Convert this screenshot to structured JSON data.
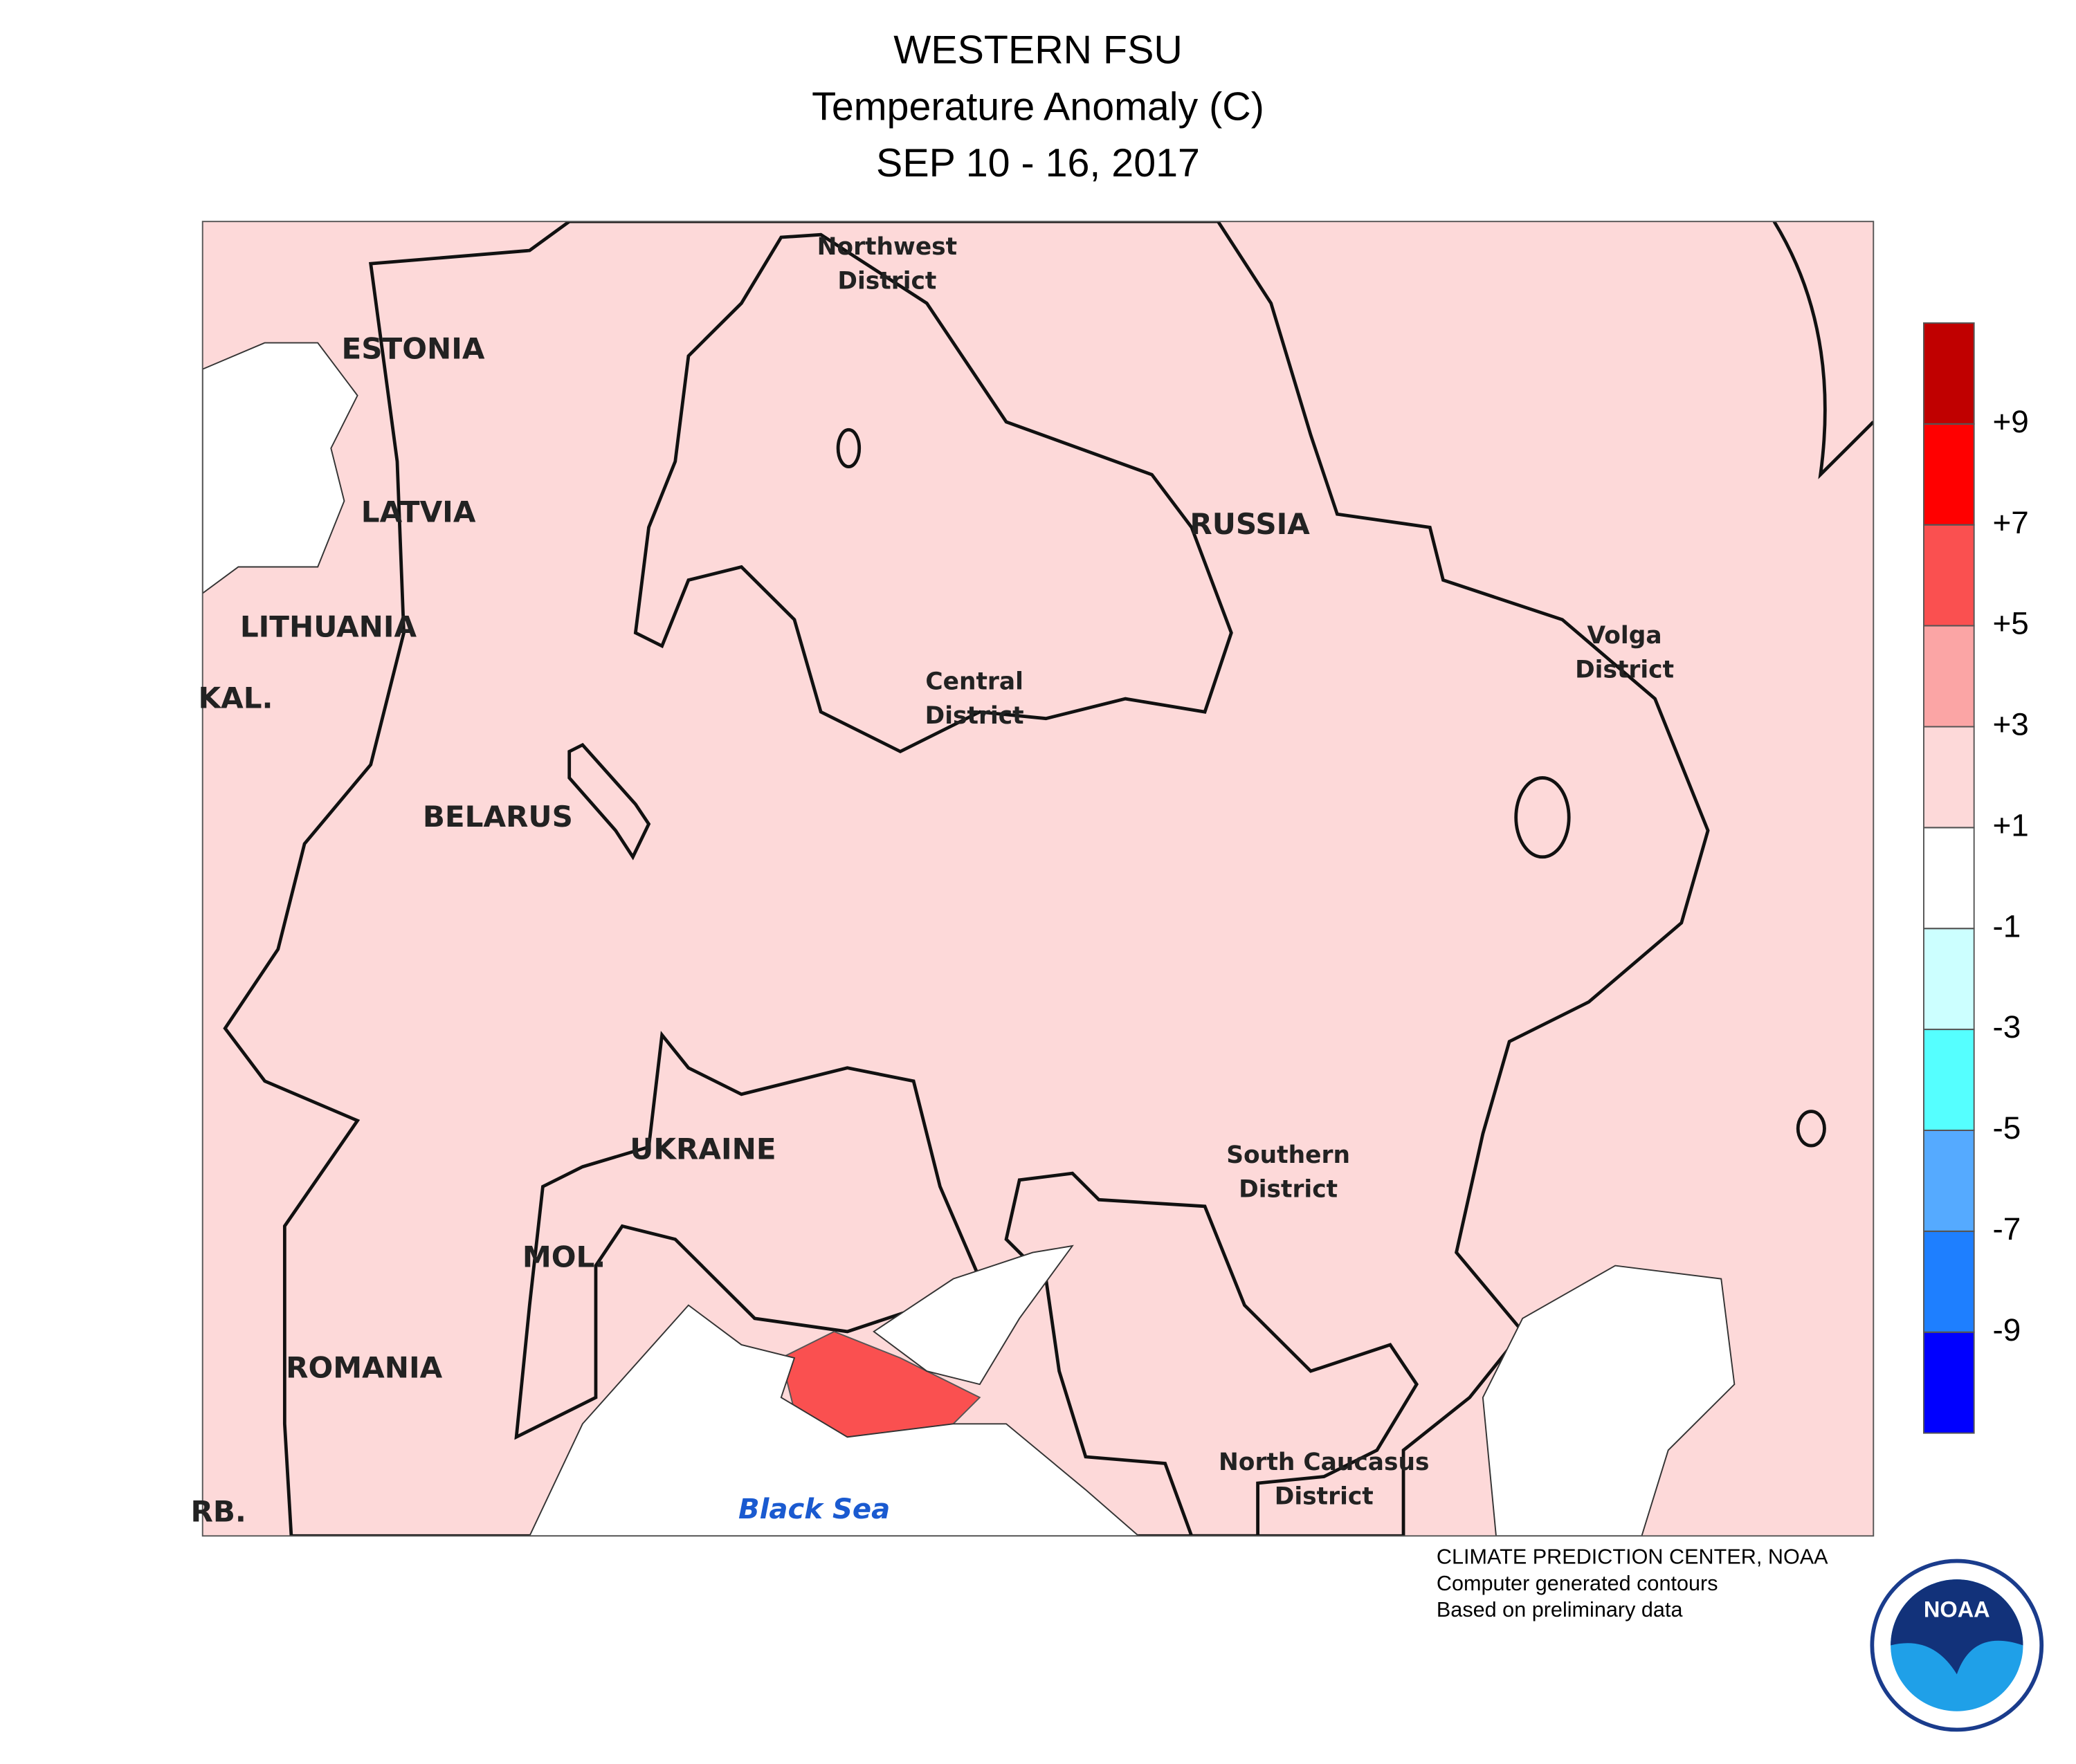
{
  "header": {
    "title": "WESTERN FSU",
    "subtitle": "Temperature Anomaly (C)",
    "date": "SEP 10 - 16, 2017"
  },
  "labels": {
    "estonia": "ESTONIA",
    "latvia": "LATVIA",
    "lithuania": "LITHUANIA",
    "kal": "KAL.",
    "belarus": "BELARUS",
    "ukraine": "UKRAINE",
    "mol": "MOL.",
    "romania": "ROMANIA",
    "russia": "RUSSIA",
    "black_sea": "Black Sea",
    "srb": "RB.",
    "northwest_1": "Northwest",
    "northwest_2": "District",
    "central_1": "Central",
    "central_2": "District",
    "volga_1": "Volga",
    "volga_2": "District",
    "southern_1": "Southern",
    "southern_2": "District",
    "caucasus_1": "North Caucasus",
    "caucasus_2": "District"
  },
  "legend": {
    "colors": [
      "#0000ff",
      "#1e7fff",
      "#55aaff",
      "#55ffff",
      "#ccffff",
      "#ffffff",
      "#fdd9d9",
      "#fba5a5",
      "#fa5050",
      "#ff0000",
      "#c00000"
    ],
    "ticks": [
      -9,
      -7,
      -5,
      -3,
      -1,
      {
        "value": 1,
        "label": "+1"
      },
      {
        "value": 3,
        "label": "+3"
      },
      {
        "value": 5,
        "label": "+5"
      },
      {
        "value": 7,
        "label": "+7"
      },
      {
        "value": 9,
        "label": "+9"
      }
    ]
  },
  "footer": {
    "line1": "CLIMATE PREDICTION CENTER, NOAA",
    "line2": "Computer generated contours",
    "line3": "Based on preliminary data",
    "logo": "NOAA"
  }
}
